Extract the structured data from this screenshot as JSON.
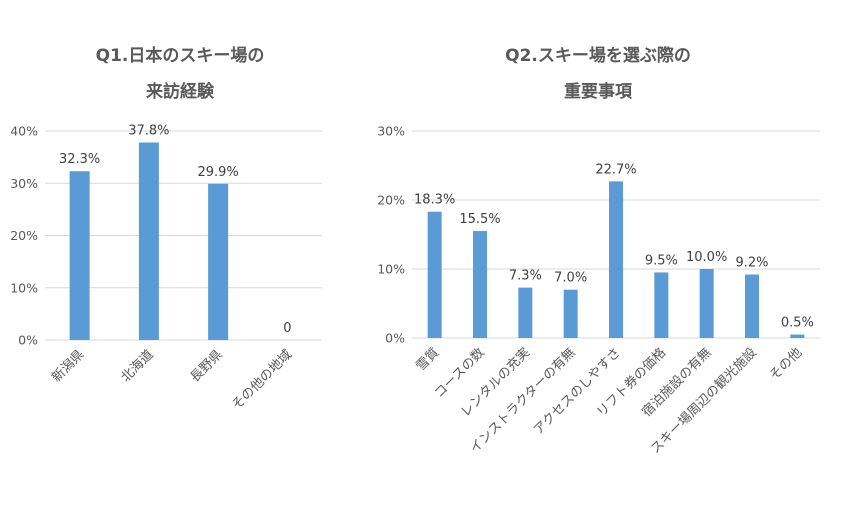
{
  "chart_data": [
    {
      "type": "bar",
      "title_lines": [
        "Q1.日本のスキー場の",
        "来訪経験"
      ],
      "categories": [
        "新潟県",
        "北海道",
        "長野県",
        "その他の地域"
      ],
      "values": [
        32.3,
        37.8,
        29.9,
        0
      ],
      "data_labels": [
        "32.3%",
        "37.8%",
        "29.9%",
        "0"
      ],
      "ylim": [
        0,
        40
      ],
      "yticks": [
        "0%",
        "10%",
        "20%",
        "30%",
        "40%"
      ],
      "bar_color": "#5b9bd5",
      "grid": true
    },
    {
      "type": "bar",
      "title_lines": [
        "Q2.スキー場を選ぶ際の",
        "重要事項"
      ],
      "categories": [
        "雪質",
        "コースの数",
        "レンタルの充実",
        "インストラクターの有無",
        "アクセスのしやすさ",
        "リフト券の価格",
        "宿泊施設の有無",
        "スキー場周辺の観光施設",
        "その他"
      ],
      "values": [
        18.3,
        15.5,
        7.3,
        7.0,
        22.7,
        9.5,
        10.0,
        9.2,
        0.5
      ],
      "data_labels": [
        "18.3%",
        "15.5%",
        "7.3%",
        "7.0%",
        "22.7%",
        "9.5%",
        "10.0%",
        "9.2%",
        "0.5%"
      ],
      "ylim": [
        0,
        30
      ],
      "yticks": [
        "0%",
        "10%",
        "20%",
        "30%"
      ],
      "bar_color": "#5b9bd5",
      "grid": true
    }
  ]
}
